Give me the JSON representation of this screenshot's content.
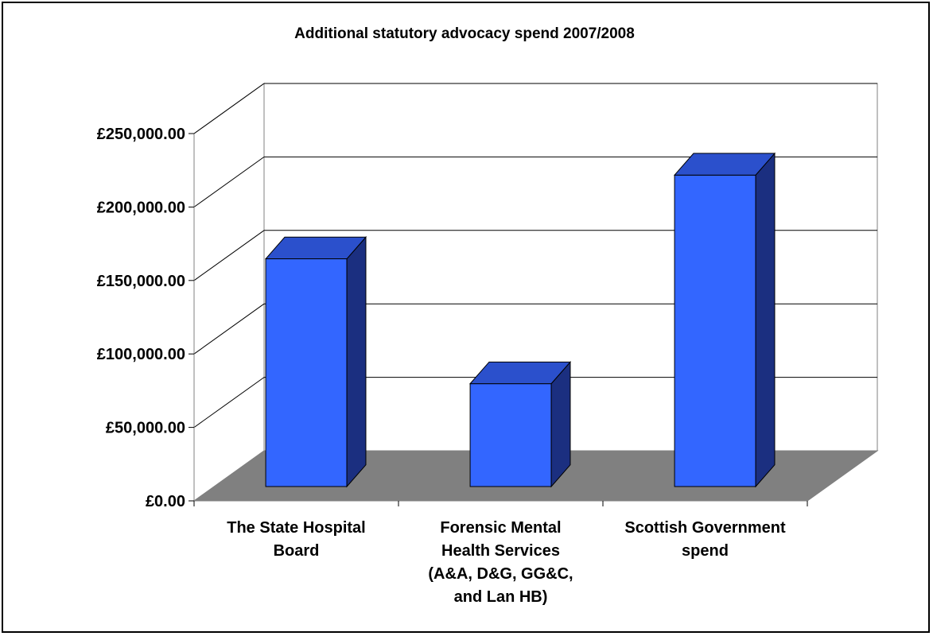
{
  "chart_data": {
    "type": "bar",
    "style": "3d-column",
    "title": "Additional statutory advocacy spend 2007/2008",
    "xlabel": "",
    "ylabel": "",
    "categories": [
      [
        "The State Hospital",
        "Board"
      ],
      [
        "Forensic Mental",
        "Health Services",
        "(A&A, D&G, GG&C,",
        "and Lan HB)"
      ],
      [
        "Scottish Government",
        "spend"
      ]
    ],
    "values": [
      155000,
      70000,
      212000
    ],
    "ylim": [
      0,
      250000
    ],
    "y_ticks": [
      0,
      50000,
      100000,
      150000,
      200000,
      250000
    ],
    "y_tick_labels": [
      "£0.00",
      "£50,000.00",
      "£100,000.00",
      "£150,000.00",
      "£200,000.00",
      "£250,000.00"
    ],
    "grid": true,
    "legend": "none"
  },
  "colors": {
    "bar_front": "#3366FF",
    "bar_top": "#2B50CC",
    "bar_side": "#1B2F80",
    "floor": "#808080",
    "grid": "#000000",
    "back_wall": "#FFFFFF"
  }
}
